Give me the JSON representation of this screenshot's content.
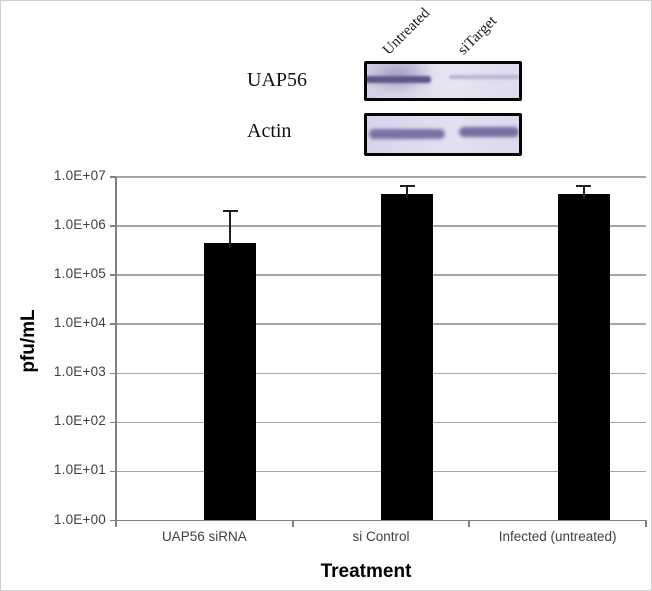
{
  "blot": {
    "lane_labels": [
      "Untreated",
      "siTarget"
    ],
    "row_labels": [
      "UAP56",
      "Actin"
    ],
    "panel_background": "#dfdcee",
    "band_color": "#5e5687"
  },
  "chart_data": {
    "type": "bar",
    "title": "",
    "xlabel": "Treatment",
    "ylabel": "pfu/mL",
    "categories": [
      "UAP56 siRNA",
      "si Control",
      "Infected (untreated)"
    ],
    "values": [
      450000,
      4500000,
      4500000
    ],
    "error_upper": [
      2000000,
      6500000,
      6500000
    ],
    "y_scale": "log",
    "ylim": [
      1,
      10000000
    ],
    "y_tick_labels": [
      "1.0E+00",
      "1.0E+01",
      "1.0E+02",
      "1.0E+03",
      "1.0E+04",
      "1.0E+05",
      "1.0E+06",
      "1.0E+07"
    ],
    "grid": true,
    "legend": false,
    "bar_color": "#000000",
    "gridline_color": "#a6a6a6",
    "axis_color": "#808080",
    "tick_label_color": "#404040"
  }
}
